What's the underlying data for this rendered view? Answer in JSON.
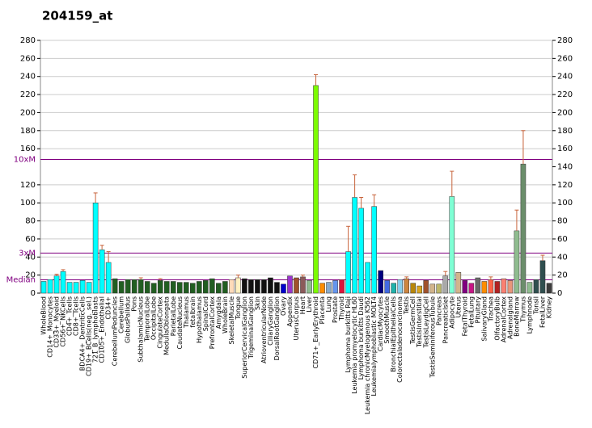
{
  "chart_data": {
    "type": "bar",
    "title": "204159_at",
    "categories": [
      "WholeBlood",
      "CD14+_Monocytes",
      "CD33+_Myeloid",
      "CD56+_NKCells",
      "CD4+_Tcells",
      "CD8+_Tcells",
      "BDCA4+_DentriticCells",
      "CD19+_BCells(neg._sel.)",
      "721_B_lymphoblasts",
      "CD105+_Endothelial",
      "CD34+",
      "CerebellumPeduncles",
      "Cerebellum",
      "GlobusPallidus",
      "Pons",
      "SubthalamicNucleus",
      "TemporalLobe",
      "OccipitalLobe",
      "CingulateCortex",
      "MedullaOblongata",
      "ParietalLobe",
      "CaudateNucleus",
      "Thalamus",
      "fetalbrain",
      "Hypothalamus",
      "SpinalCord",
      "PrefrontalCortex",
      "Amygdala",
      "WholeBrain",
      "SkeletalMuscle",
      "Tongue",
      "SuperiorCervicalGanglion",
      "TrigeminalGanglion",
      "Skin",
      "AtrioventricularNode",
      "CiliaryGanglion",
      "DorsalRootGanglion",
      "Ovary",
      "Appendix",
      "UterusCorpus",
      "Heart",
      "Liver",
      "CD71+_EarlyErythroid",
      "Placenta",
      "Lung",
      "Prostate",
      "Thyroid",
      "Lymphoma burkitts Raji",
      "Leukemia promyelocytic HL60",
      "Lymphoma burkitts Daudi",
      "Leukemia chronicMyelogenous K562",
      "Leukemialymphoblastic MOLT4",
      "CardiacMyocytes",
      "SmoothMuscle",
      "BronchialEpithelialCells",
      "Colorectaladenocarcinoma",
      "Testis",
      "TestisGermCell",
      "TestisInterstitial",
      "TestisLeydigCell",
      "TestisSeminiferousTubule",
      "Pancreas",
      "PancreaticIslet",
      "Adipocyte",
      "Uterus",
      "FetalThyroid",
      "FetalLung",
      "Pituitary",
      "SalivaryGland",
      "Trachea",
      "OlfactoryBulb",
      "AdrenalCortex",
      "Adrenalgland",
      "BoneMarrow",
      "Thymus",
      "Lymphnode",
      "Tonsil",
      "FetalLiver",
      "Kidney"
    ],
    "values": [
      13,
      15,
      19,
      24,
      12,
      12,
      14,
      12,
      100,
      48,
      34,
      16,
      13,
      15,
      15,
      15,
      13,
      11,
      14,
      13,
      13,
      12,
      12,
      11,
      13,
      14,
      16,
      11,
      13,
      15,
      17,
      16,
      15,
      15,
      15,
      17,
      12,
      10,
      19,
      17,
      18,
      14,
      230,
      11,
      12,
      14,
      15,
      46,
      106,
      94,
      34,
      96,
      25,
      14,
      11,
      15,
      16,
      11,
      8,
      14,
      10,
      10,
      19,
      107,
      23,
      14,
      11,
      17,
      13,
      15,
      13,
      16,
      14,
      69,
      143,
      12,
      15,
      36,
      11
    ],
    "errors": [
      null,
      null,
      2,
      2,
      null,
      null,
      null,
      null,
      11,
      5,
      12,
      null,
      null,
      null,
      null,
      2,
      null,
      null,
      2,
      null,
      null,
      null,
      null,
      null,
      null,
      null,
      null,
      null,
      null,
      null,
      3,
      null,
      null,
      null,
      null,
      null,
      null,
      null,
      null,
      null,
      2,
      null,
      12,
      null,
      null,
      null,
      null,
      28,
      25,
      12,
      null,
      13,
      null,
      null,
      null,
      null,
      2,
      null,
      null,
      null,
      null,
      null,
      5,
      28,
      null,
      null,
      null,
      null,
      null,
      3,
      null,
      null,
      null,
      23,
      37,
      null,
      null,
      6,
      null
    ],
    "colors": [
      "#00ffff",
      "#00ffff",
      "#00ffff",
      "#00ffff",
      "#00ffff",
      "#00ffff",
      "#00ffff",
      "#00ffff",
      "#00ffff",
      "#00ffff",
      "#00ffff",
      "#215e21",
      "#215e21",
      "#215e21",
      "#215e21",
      "#215e21",
      "#215e21",
      "#215e21",
      "#215e21",
      "#215e21",
      "#215e21",
      "#215e21",
      "#215e21",
      "#215e21",
      "#215e21",
      "#215e21",
      "#215e21",
      "#215e21",
      "#215e21",
      "#ffdab9",
      "#fff0c0",
      "#111111",
      "#111111",
      "#111111",
      "#111111",
      "#111111",
      "#111111",
      "#0000cc",
      "#9933cc",
      "#a0522d",
      "#8b5a5a",
      "#8fbc8f",
      "#7cfc00",
      "#ff8c00",
      "#87aacc",
      "#6495ed",
      "#dc143c",
      "#00ffff",
      "#00ffff",
      "#00ffff",
      "#00ffff",
      "#00ffff",
      "#000080",
      "#4169e1",
      "#20b2aa",
      "#87ceeb",
      "#cd853f",
      "#b8860b",
      "#daa520",
      "#a0522d",
      "#d2b48c",
      "#bdb76b",
      "#a9a9a9",
      "#7fffd4",
      "#d2b48c",
      "#800080",
      "#c71585",
      "#696969",
      "#ff8c00",
      "#ff6347",
      "#b22222",
      "#fa8072",
      "#e9967a",
      "#8fbc8f",
      "#6b8e6b",
      "#8fbc8f",
      "#2f4f4f",
      "#2f4f4f",
      "#3c3c3c"
    ],
    "ylim": [
      0,
      280
    ],
    "yticks": [
      0,
      20,
      40,
      60,
      80,
      100,
      120,
      160,
      180,
      200,
      220,
      240,
      260,
      280
    ],
    "y2lim": [
      0,
      280
    ],
    "y2ticks": [
      0,
      20,
      40,
      60,
      80,
      100,
      120,
      140,
      160,
      180,
      200,
      220,
      240,
      260,
      280
    ],
    "grid": true,
    "reference_lines": [
      {
        "label": "10xM",
        "value": 148
      },
      {
        "label": "3xM",
        "value": 44.4
      },
      {
        "label": "Median",
        "value": 14.8
      }
    ]
  }
}
